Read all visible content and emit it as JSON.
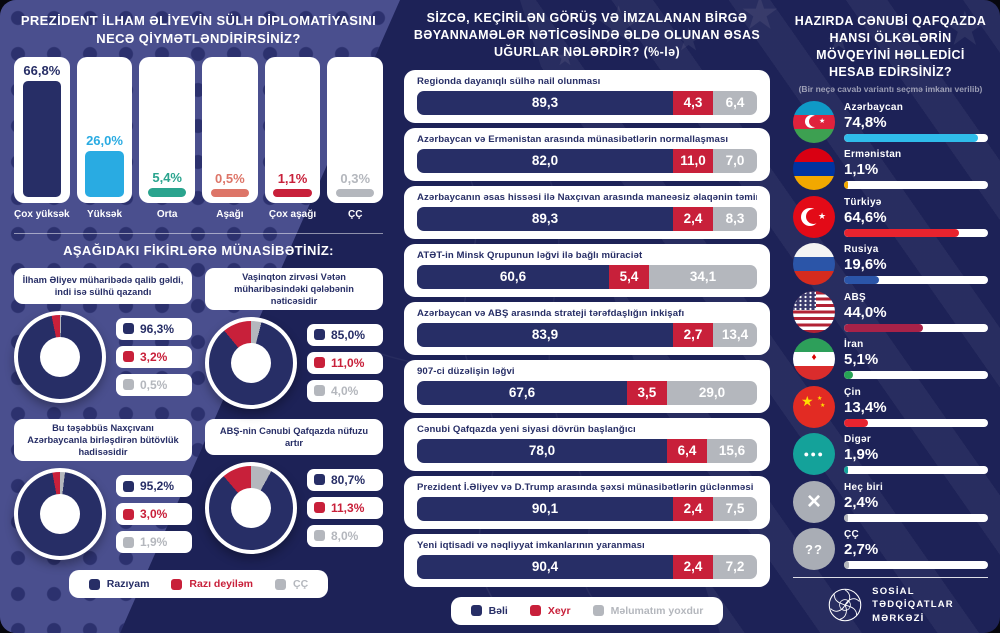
{
  "colors": {
    "navy": "#272e66",
    "red": "#c8203a",
    "gray": "#b4b7bd",
    "cyan": "#2fbcea",
    "teal": "#2aa48e",
    "salmon": "#dd7568",
    "background": "#1d2257",
    "band": "#4a4f8e",
    "card": "#ffffff"
  },
  "left_panel": {
    "title": "PREZİDENT İLHAM ƏLİYEVİN SÜLH DİPLOMATİYASINI NECƏ QİYMƏTLƏNDİRİRSİNİZ?",
    "rating": {
      "categories": [
        "Çox yüksək",
        "Yüksək",
        "Orta",
        "Aşağı",
        "Çox aşağı",
        "ÇÇ"
      ],
      "values": [
        66.8,
        26.0,
        5.4,
        0.5,
        1.1,
        0.3
      ],
      "value_labels": [
        "66,8%",
        "26,0%",
        "5,4%",
        "0,5%",
        "1,1%",
        "0,3%"
      ],
      "colors": [
        "#272e66",
        "#29abe2",
        "#2aa48e",
        "#dd7568",
        "#c8203a",
        "#b4b7bd"
      ]
    },
    "opinions": {
      "title": "AŞAĞIDAKI FİKİRLƏRƏ MÜNASİBƏTİNİZ:",
      "items": [
        {
          "statement": "İlham Əliyev müharibədə qalib gəldi, indi isə sülhü qazandı",
          "agree": 96.3,
          "disagree": 3.2,
          "cc": 0.5,
          "labels": [
            "96,3%",
            "3,2%",
            "0,5%"
          ]
        },
        {
          "statement": "Vaşinqton zirvəsi Vətən müharibəsindəki qələbənin nəticəsidir",
          "agree": 85.0,
          "disagree": 11.0,
          "cc": 4.0,
          "labels": [
            "85,0%",
            "11,0%",
            "4,0%"
          ]
        },
        {
          "statement": "Bu təşəbbüs Naxçıvanı Azərbaycanla birləşdirən bütövlük hadisəsidir",
          "agree": 95.2,
          "disagree": 3.0,
          "cc": 1.9,
          "labels": [
            "95,2%",
            "3,0%",
            "1,9%"
          ]
        },
        {
          "statement": "ABŞ-nin Cənubi Qafqazda nüfuzu artır",
          "agree": 80.7,
          "disagree": 11.3,
          "cc": 8.0,
          "labels": [
            "80,7%",
            "11,3%",
            "8,0%"
          ]
        }
      ],
      "legend": [
        {
          "label": "Razıyam",
          "color": "#272e66"
        },
        {
          "label": "Razı deyiləm",
          "color": "#c8203a"
        },
        {
          "label": "ÇÇ",
          "color": "#b4b7bd"
        }
      ]
    }
  },
  "middle_panel": {
    "title": "SİZCƏ, KEÇİRİLƏN GÖRÜŞ VƏ İMZALANAN BİRGƏ BƏYANNAMƏLƏR NƏTİCƏSİNDƏ ƏLDƏ OLUNAN ƏSAS UĞURLAR NƏLƏRDİR? (%-lə)",
    "items": [
      {
        "label": "Regionda dayanıqlı sülhə nail olunması",
        "yes": 89.3,
        "no": 4.3,
        "dk": 6.4,
        "labels": [
          "89,3",
          "4,3",
          "6,4"
        ]
      },
      {
        "label": "Azərbaycan və Ermənistan arasında münasibətlərin normallaşması",
        "yes": 82.0,
        "no": 11.0,
        "dk": 7.0,
        "labels": [
          "82,0",
          "11,0",
          "7,0"
        ]
      },
      {
        "label": "Azərbaycanın əsas hissəsi ilə Naxçıvan arasında maneəsiz əlaqənin təmin olunması",
        "yes": 89.3,
        "no": 2.4,
        "dk": 8.3,
        "labels": [
          "89,3",
          "2,4",
          "8,3"
        ]
      },
      {
        "label": "ATƏT-in Minsk Qrupunun ləğvi ilə bağlı müraciət",
        "yes": 60.6,
        "no": 5.4,
        "dk": 34.1,
        "labels": [
          "60,6",
          "5,4",
          "34,1"
        ]
      },
      {
        "label": "Azərbaycan və ABŞ arasında strateji tərəfdaşlığın inkişafı",
        "yes": 83.9,
        "no": 2.7,
        "dk": 13.4,
        "labels": [
          "83,9",
          "2,7",
          "13,4"
        ]
      },
      {
        "label": "907-ci düzəlişin ləğvi",
        "yes": 67.6,
        "no": 3.5,
        "dk": 29.0,
        "labels": [
          "67,6",
          "3,5",
          "29,0"
        ]
      },
      {
        "label": "Cənubi Qafqazda yeni siyasi dövrün başlanğıcı",
        "yes": 78.0,
        "no": 6.4,
        "dk": 15.6,
        "labels": [
          "78,0",
          "6,4",
          "15,6"
        ]
      },
      {
        "label": "Prezident İ.Əliyev və D.Trump arasında şəxsi münasibətlərin güclənməsi",
        "yes": 90.1,
        "no": 2.4,
        "dk": 7.5,
        "labels": [
          "90,1",
          "2,4",
          "7,5"
        ]
      },
      {
        "label": "Yeni iqtisadi və nəqliyyat imkanlarının yaranması",
        "yes": 90.4,
        "no": 2.4,
        "dk": 7.2,
        "labels": [
          "90,4",
          "2,4",
          "7,2"
        ]
      }
    ],
    "legend": [
      {
        "label": "Bəli",
        "color": "#272e66"
      },
      {
        "label": "Xeyr",
        "color": "#c8203a"
      },
      {
        "label": "Məlumatım yoxdur",
        "color": "#b4b7bd"
      }
    ]
  },
  "right_panel": {
    "title": "HAZIRDA CƏNUBİ QAFQAZDA HANSI ÖLKƏLƏRİN MÖVQEYİNİ HƏLLEDİCİ HESAB EDİRSİNİZ?",
    "subtitle": "(Bir neçə cavab variantı seçmə imkanı verilib)",
    "items": [
      {
        "country": "Azərbaycan",
        "value": 74.8,
        "label": "74,8%",
        "flag": "azerbaijan",
        "bar_color": "#2fbcea"
      },
      {
        "country": "Ermənistan",
        "value": 1.1,
        "label": "1,1%",
        "flag": "armenia",
        "bar_color": "#f2a800"
      },
      {
        "country": "Türkiyə",
        "value": 64.6,
        "label": "64,6%",
        "flag": "turkey",
        "bar_color": "#e8232e"
      },
      {
        "country": "Rusiya",
        "value": 19.6,
        "label": "19,6%",
        "flag": "russia",
        "bar_color": "#2b55a8"
      },
      {
        "country": "ABŞ",
        "value": 44.0,
        "label": "44,0%",
        "flag": "usa",
        "bar_color": "#a82248"
      },
      {
        "country": "İran",
        "value": 5.1,
        "label": "5,1%",
        "flag": "iran",
        "bar_color": "#27a355"
      },
      {
        "country": "Çin",
        "value": 13.4,
        "label": "13,4%",
        "flag": "china",
        "bar_color": "#e8232e"
      },
      {
        "country": "Digər",
        "value": 1.9,
        "label": "1,9%",
        "flag": "other",
        "bar_color": "#14a29a"
      },
      {
        "country": "Heç biri",
        "value": 2.4,
        "label": "2,4%",
        "flag": "none",
        "bar_color": "#b4b7bd"
      },
      {
        "country": "ÇÇ",
        "value": 2.7,
        "label": "2,7%",
        "flag": "cc",
        "bar_color": "#b4b7bd"
      }
    ],
    "footer_org": [
      "SOSİAL",
      "TƏDQİQATLAR",
      "MƏRKƏZİ"
    ]
  },
  "chart_data": [
    {
      "type": "bar",
      "title": "PREZİDENT İLHAM ƏLİYEVİN SÜLH DİPLOMATİYASINI NECƏ QİYMƏTLƏNDİRİRSİNİZ?",
      "categories": [
        "Çox yüksək",
        "Yüksək",
        "Orta",
        "Aşağı",
        "Çox aşağı",
        "ÇÇ"
      ],
      "values": [
        66.8,
        26.0,
        5.4,
        0.5,
        1.1,
        0.3
      ],
      "unit": "%",
      "ylim": [
        0,
        100
      ],
      "grid": false
    },
    {
      "type": "pie",
      "title": "İlham Əliyev müharibədə qalib gəldi, indi isə sülhü qazandı",
      "labels": [
        "Razıyam",
        "Razı deyiləm",
        "ÇÇ"
      ],
      "values": [
        96.3,
        3.2,
        0.5
      ]
    },
    {
      "type": "pie",
      "title": "Vaşinqton zirvəsi Vətən müharibəsindəki qələbənin nəticəsidir",
      "labels": [
        "Razıyam",
        "Razı deyiləm",
        "ÇÇ"
      ],
      "values": [
        85.0,
        11.0,
        4.0
      ]
    },
    {
      "type": "pie",
      "title": "Bu təşəbbüs Naxçıvanı Azərbaycanla birləşdirən bütövlük hadisəsidir",
      "labels": [
        "Razıyam",
        "Razı deyiləm",
        "ÇÇ"
      ],
      "values": [
        95.2,
        3.0,
        1.9
      ]
    },
    {
      "type": "pie",
      "title": "ABŞ-nin Cənubi Qafqazda nüfuzu artır",
      "labels": [
        "Razıyam",
        "Razı deyiləm",
        "ÇÇ"
      ],
      "values": [
        80.7,
        11.3,
        8.0
      ]
    },
    {
      "type": "bar",
      "subtype": "stacked-horizontal",
      "title": "SİZCƏ, KEÇİRİLƏN GÖRÜŞ VƏ İMZALANAN BİRGƏ BƏYANNAMƏLƏR NƏTİCƏSİNDƏ ƏLDƏ OLUNAN ƏSAS UĞURLAR NƏLƏRDİR? (%-lə)",
      "categories": [
        "Regionda dayanıqlı sülhə nail olunması",
        "Azərbaycan və Ermənistan arasında münasibətlərin normallaşması",
        "Azərbaycanın əsas hissəsi ilə Naxçıvan arasında maneəsiz əlaqənin təmin olunması",
        "ATƏT-in Minsk Qrupunun ləğvi ilə bağlı müraciət",
        "Azərbaycan və ABŞ arasında strateji tərəfdaşlığın inkişafı",
        "907-ci düzəlişin ləğvi",
        "Cənubi Qafqazda yeni siyasi dövrün başlanğıcı",
        "Prezident İ.Əliyev və D.Trump arasında şəxsi münasibətlərin güclənməsi",
        "Yeni iqtisadi və nəqliyyat imkanlarının yaranması"
      ],
      "series": [
        {
          "name": "Bəli",
          "values": [
            89.3,
            82.0,
            89.3,
            60.6,
            83.9,
            67.6,
            78.0,
            90.1,
            90.4
          ]
        },
        {
          "name": "Xeyr",
          "values": [
            4.3,
            11.0,
            2.4,
            5.4,
            2.7,
            3.5,
            6.4,
            2.4,
            2.4
          ]
        },
        {
          "name": "Məlumatım yoxdur",
          "values": [
            6.4,
            7.0,
            8.3,
            34.1,
            13.4,
            29.0,
            15.6,
            7.5,
            7.2
          ]
        }
      ],
      "unit": "%"
    },
    {
      "type": "bar",
      "subtype": "horizontal",
      "title": "HAZIRDA CƏNUBİ QAFQAZDA HANSI ÖLKƏLƏRİN MÖVQEYİNİ HƏLLEDİCİ HESAB EDİRSİNİZ?",
      "categories": [
        "Azərbaycan",
        "Ermənistan",
        "Türkiyə",
        "Rusiya",
        "ABŞ",
        "İran",
        "Çin",
        "Digər",
        "Heç biri",
        "ÇÇ"
      ],
      "values": [
        74.8,
        1.1,
        64.6,
        19.6,
        44.0,
        5.1,
        13.4,
        1.9,
        2.4,
        2.7
      ],
      "unit": "%"
    }
  ]
}
